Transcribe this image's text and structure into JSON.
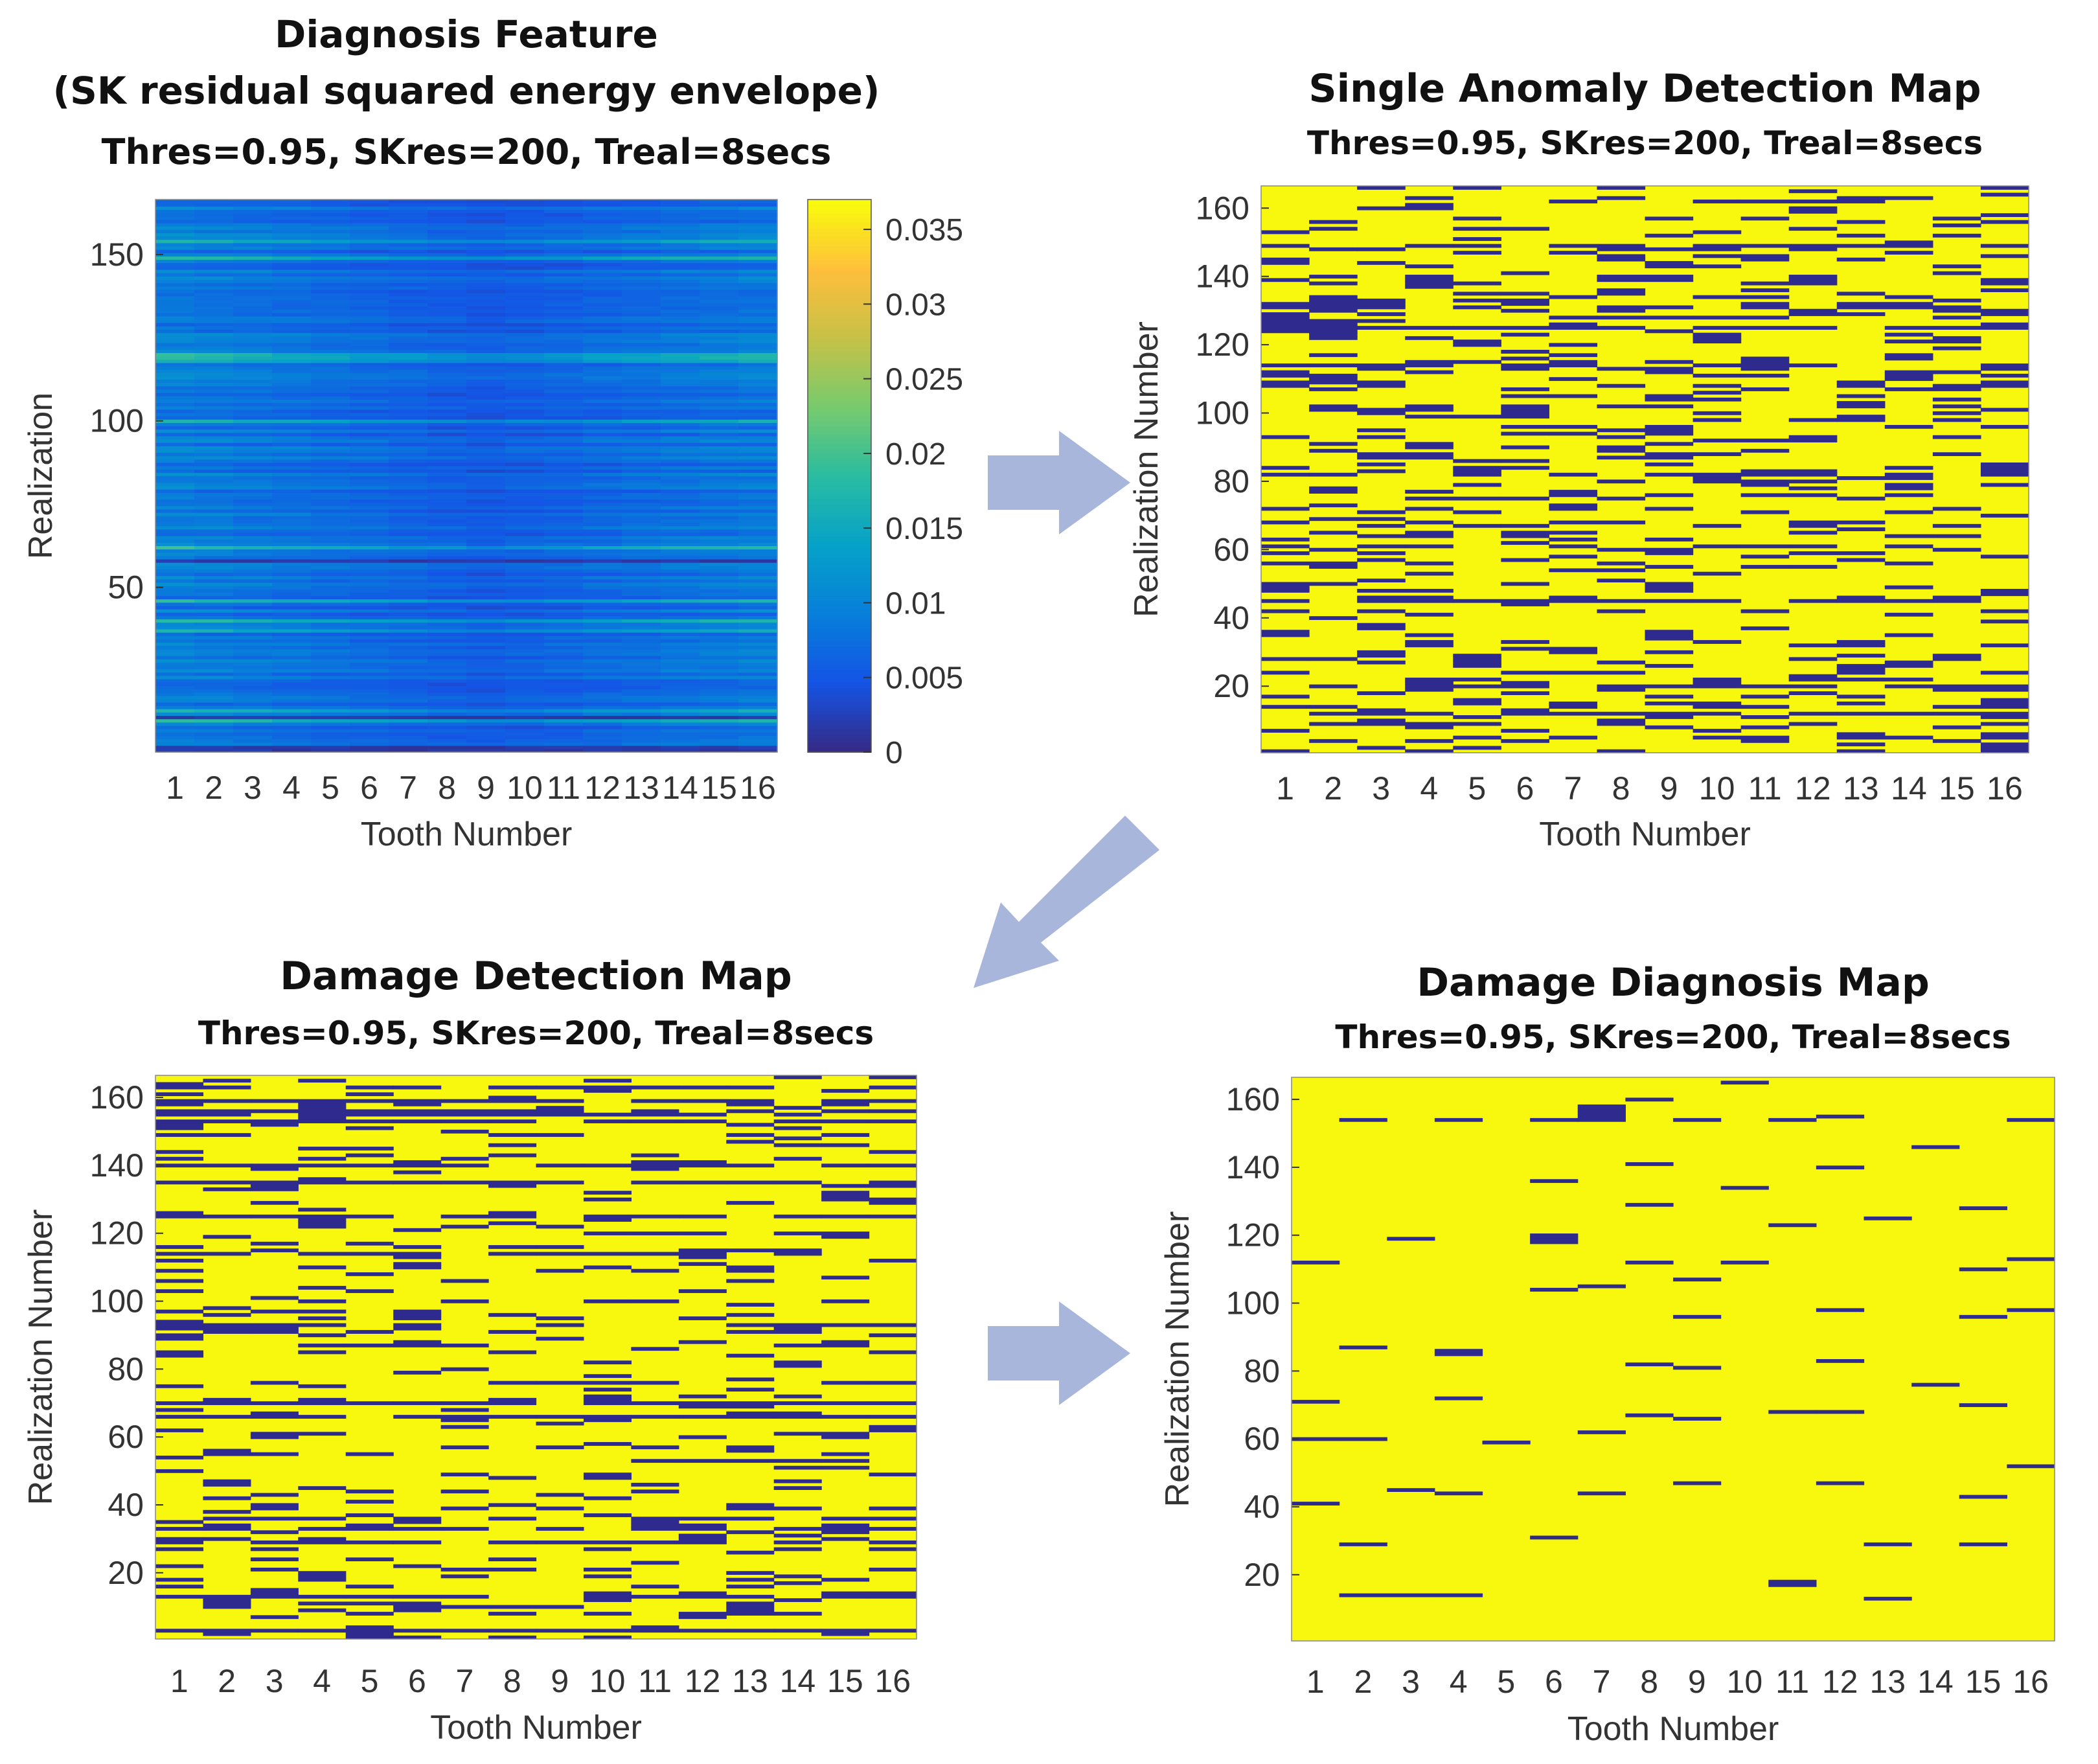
{
  "chart_data": [
    {
      "type": "heatmap",
      "panel": "top-left",
      "title": [
        "Diagnosis Feature",
        "(SK residual squared energy envelope)"
      ],
      "subtitle": "Thres=0.95, SKres=200, Treal=8secs",
      "xlabel": "Tooth Number",
      "ylabel": "Realization",
      "xticks": [
        "1",
        "2",
        "3",
        "4",
        "5",
        "6",
        "7",
        "8",
        "9",
        "10",
        "11",
        "12",
        "13",
        "14",
        "15",
        "16"
      ],
      "yticks": [
        50,
        100,
        150
      ],
      "ytick_labels": [
        "50",
        "100",
        "150"
      ],
      "ylim": [
        1,
        166
      ],
      "colormap": "parula",
      "colorbar": {
        "ticks": [
          0,
          0.005,
          0.01,
          0.015,
          0.02,
          0.025,
          0.03,
          0.035
        ],
        "tick_labels": [
          "0",
          "0.005",
          "0.01",
          "0.015",
          "0.02",
          "0.025",
          "0.03",
          "0.035"
        ],
        "range": [
          0,
          0.037
        ]
      },
      "bright_rows": [
        10,
        13,
        37,
        40,
        46,
        62,
        100,
        118,
        149,
        154
      ]
    },
    {
      "type": "heatmap",
      "panel": "top-right",
      "title": "Single Anomaly Detection Map",
      "subtitle": "Thres=0.95, SKres=200, Treal=8secs",
      "xlabel": "Tooth Number",
      "ylabel": "Realization Number",
      "xticks": [
        "1",
        "2",
        "3",
        "4",
        "5",
        "6",
        "7",
        "8",
        "9",
        "10",
        "11",
        "12",
        "13",
        "14",
        "15",
        "16"
      ],
      "yticks": [
        20,
        40,
        60,
        80,
        100,
        120,
        140,
        160
      ],
      "ytick_labels": [
        "20",
        "40",
        "60",
        "80",
        "100",
        "120",
        "140",
        "160"
      ],
      "ylim": [
        1,
        166
      ],
      "colors": {
        "healthy": "#f8f80e",
        "anomaly": "#2e2a8e"
      },
      "anomaly_density": 0.24
    },
    {
      "type": "heatmap",
      "panel": "bottom-left",
      "title": "Damage Detection Map",
      "subtitle": "Thres=0.95, SKres=200, Treal=8secs",
      "xlabel": "Tooth Number",
      "ylabel": "Realization Number",
      "xticks": [
        "1",
        "2",
        "3",
        "4",
        "5",
        "6",
        "7",
        "8",
        "9",
        "10",
        "11",
        "12",
        "13",
        "14",
        "15",
        "16"
      ],
      "yticks": [
        20,
        40,
        60,
        80,
        100,
        120,
        140,
        160
      ],
      "ytick_labels": [
        "20",
        "40",
        "60",
        "80",
        "100",
        "120",
        "140",
        "160"
      ],
      "ylim": [
        1,
        166
      ],
      "colors": {
        "healthy": "#f8f80e",
        "damage": "#2e2a8e"
      },
      "damage_density": 0.15
    },
    {
      "type": "heatmap",
      "panel": "bottom-right",
      "title": "Damage Diagnosis Map",
      "subtitle": "Thres=0.95, SKres=200, Treal=8secs",
      "xlabel": "Tooth Number",
      "ylabel": "Realization Number",
      "xticks": [
        "1",
        "2",
        "3",
        "4",
        "5",
        "6",
        "7",
        "8",
        "9",
        "10",
        "11",
        "12",
        "13",
        "14",
        "15",
        "16"
      ],
      "yticks": [
        20,
        40,
        60,
        80,
        100,
        120,
        140,
        160
      ],
      "ytick_labels": [
        "20",
        "40",
        "60",
        "80",
        "100",
        "120",
        "140",
        "160"
      ],
      "ylim": [
        1,
        166
      ],
      "colors": {
        "healthy": "#f8f80e",
        "damage": "#2e2a8e"
      },
      "damage_cells": [
        [
          1,
          112
        ],
        [
          1,
          71
        ],
        [
          1,
          60
        ],
        [
          1,
          41
        ],
        [
          2,
          154
        ],
        [
          2,
          87
        ],
        [
          2,
          60
        ],
        [
          2,
          29
        ],
        [
          2,
          14
        ],
        [
          3,
          119
        ],
        [
          3,
          45
        ],
        [
          3,
          14
        ],
        [
          4,
          154
        ],
        [
          4,
          86
        ],
        [
          4,
          85
        ],
        [
          4,
          72
        ],
        [
          4,
          44
        ],
        [
          4,
          14
        ],
        [
          5,
          59
        ],
        [
          6,
          154
        ],
        [
          6,
          136
        ],
        [
          6,
          120
        ],
        [
          6,
          119
        ],
        [
          6,
          118
        ],
        [
          6,
          104
        ],
        [
          6,
          31
        ],
        [
          7,
          158
        ],
        [
          7,
          157
        ],
        [
          7,
          156
        ],
        [
          7,
          155
        ],
        [
          7,
          154
        ],
        [
          7,
          105
        ],
        [
          7,
          62
        ],
        [
          7,
          44
        ],
        [
          8,
          160
        ],
        [
          8,
          141
        ],
        [
          8,
          129
        ],
        [
          8,
          112
        ],
        [
          8,
          82
        ],
        [
          8,
          67
        ],
        [
          9,
          154
        ],
        [
          9,
          107
        ],
        [
          9,
          96
        ],
        [
          9,
          81
        ],
        [
          9,
          66
        ],
        [
          9,
          47
        ],
        [
          10,
          165
        ],
        [
          10,
          134
        ],
        [
          10,
          112
        ],
        [
          11,
          154
        ],
        [
          11,
          123
        ],
        [
          11,
          68
        ],
        [
          11,
          18
        ],
        [
          11,
          17
        ],
        [
          12,
          155
        ],
        [
          12,
          140
        ],
        [
          12,
          98
        ],
        [
          12,
          83
        ],
        [
          12,
          68
        ],
        [
          12,
          47
        ],
        [
          13,
          125
        ],
        [
          13,
          29
        ],
        [
          13,
          13
        ],
        [
          14,
          146
        ],
        [
          14,
          76
        ],
        [
          15,
          128
        ],
        [
          15,
          110
        ],
        [
          15,
          96
        ],
        [
          15,
          70
        ],
        [
          15,
          43
        ],
        [
          15,
          29
        ],
        [
          16,
          154
        ],
        [
          16,
          113
        ],
        [
          16,
          98
        ],
        [
          16,
          52
        ]
      ]
    }
  ],
  "arrows": [
    "right-top",
    "down-left-diagonal",
    "right-bottom"
  ],
  "arrow_color": "#a9b6dc"
}
